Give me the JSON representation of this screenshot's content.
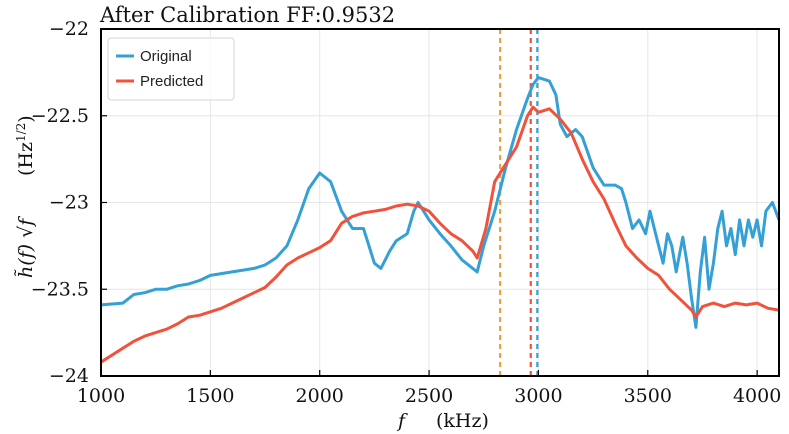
{
  "chart_data": {
    "type": "line",
    "title": "After Calibration FF:0.9532",
    "xlabel": "f",
    "xunit": "(kHz)",
    "ylabel": "h̃(f) √f",
    "yunit": "(Hz",
    "yunit_exp": "1/2",
    "yunit_close": ")",
    "xlim": [
      1000,
      4100
    ],
    "ylim": [
      -24,
      -22
    ],
    "xticks": [
      1000,
      1500,
      2000,
      2500,
      3000,
      3500,
      4000
    ],
    "yticks": [
      -24,
      -23.5,
      -23,
      -22.5,
      -22
    ],
    "ytick_labels": [
      "−24",
      "−23.5",
      "−23",
      "−22.5",
      "−22"
    ],
    "grid": true,
    "legend_position": "top-left",
    "series": [
      {
        "name": "Original",
        "color": "#34a0d6",
        "points": [
          [
            1000,
            -23.59
          ],
          [
            1100,
            -23.58
          ],
          [
            1150,
            -23.53
          ],
          [
            1200,
            -23.52
          ],
          [
            1250,
            -23.5
          ],
          [
            1300,
            -23.5
          ],
          [
            1350,
            -23.48
          ],
          [
            1400,
            -23.47
          ],
          [
            1450,
            -23.45
          ],
          [
            1500,
            -23.42
          ],
          [
            1600,
            -23.4
          ],
          [
            1700,
            -23.38
          ],
          [
            1750,
            -23.36
          ],
          [
            1800,
            -23.32
          ],
          [
            1850,
            -23.25
          ],
          [
            1900,
            -23.1
          ],
          [
            1950,
            -22.92
          ],
          [
            2000,
            -22.83
          ],
          [
            2050,
            -22.88
          ],
          [
            2100,
            -23.05
          ],
          [
            2150,
            -23.15
          ],
          [
            2200,
            -23.15
          ],
          [
            2250,
            -23.35
          ],
          [
            2280,
            -23.38
          ],
          [
            2320,
            -23.28
          ],
          [
            2350,
            -23.22
          ],
          [
            2400,
            -23.18
          ],
          [
            2430,
            -23.05
          ],
          [
            2450,
            -23.0
          ],
          [
            2500,
            -23.1
          ],
          [
            2550,
            -23.18
          ],
          [
            2600,
            -23.25
          ],
          [
            2650,
            -23.33
          ],
          [
            2700,
            -23.38
          ],
          [
            2720,
            -23.4
          ],
          [
            2750,
            -23.25
          ],
          [
            2800,
            -23.05
          ],
          [
            2850,
            -22.8
          ],
          [
            2900,
            -22.58
          ],
          [
            2950,
            -22.4
          ],
          [
            2975,
            -22.32
          ],
          [
            3000,
            -22.28
          ],
          [
            3050,
            -22.3
          ],
          [
            3080,
            -22.38
          ],
          [
            3100,
            -22.55
          ],
          [
            3130,
            -22.62
          ],
          [
            3150,
            -22.6
          ],
          [
            3170,
            -22.58
          ],
          [
            3200,
            -22.62
          ],
          [
            3250,
            -22.8
          ],
          [
            3300,
            -22.9
          ],
          [
            3350,
            -22.9
          ],
          [
            3380,
            -22.92
          ],
          [
            3400,
            -23.0
          ],
          [
            3430,
            -23.15
          ],
          [
            3460,
            -23.1
          ],
          [
            3490,
            -23.18
          ],
          [
            3510,
            -23.05
          ],
          [
            3540,
            -23.2
          ],
          [
            3570,
            -23.35
          ],
          [
            3590,
            -23.18
          ],
          [
            3610,
            -23.25
          ],
          [
            3630,
            -23.4
          ],
          [
            3660,
            -23.2
          ],
          [
            3680,
            -23.35
          ],
          [
            3700,
            -23.55
          ],
          [
            3720,
            -23.72
          ],
          [
            3740,
            -23.4
          ],
          [
            3760,
            -23.2
          ],
          [
            3780,
            -23.5
          ],
          [
            3800,
            -23.35
          ],
          [
            3820,
            -23.15
          ],
          [
            3840,
            -23.05
          ],
          [
            3860,
            -23.25
          ],
          [
            3880,
            -23.15
          ],
          [
            3900,
            -23.3
          ],
          [
            3920,
            -23.1
          ],
          [
            3940,
            -23.25
          ],
          [
            3960,
            -23.1
          ],
          [
            3980,
            -23.2
          ],
          [
            4000,
            -23.1
          ],
          [
            4020,
            -23.25
          ],
          [
            4040,
            -23.05
          ],
          [
            4070,
            -23.0
          ],
          [
            4100,
            -23.1
          ]
        ]
      },
      {
        "name": "Predicted",
        "color": "#f0523c",
        "points": [
          [
            1000,
            -23.92
          ],
          [
            1050,
            -23.88
          ],
          [
            1100,
            -23.84
          ],
          [
            1150,
            -23.8
          ],
          [
            1200,
            -23.77
          ],
          [
            1250,
            -23.75
          ],
          [
            1300,
            -23.73
          ],
          [
            1350,
            -23.7
          ],
          [
            1400,
            -23.66
          ],
          [
            1450,
            -23.65
          ],
          [
            1500,
            -23.63
          ],
          [
            1550,
            -23.61
          ],
          [
            1600,
            -23.58
          ],
          [
            1650,
            -23.55
          ],
          [
            1700,
            -23.52
          ],
          [
            1750,
            -23.49
          ],
          [
            1800,
            -23.43
          ],
          [
            1850,
            -23.36
          ],
          [
            1900,
            -23.32
          ],
          [
            1950,
            -23.29
          ],
          [
            2000,
            -23.26
          ],
          [
            2050,
            -23.22
          ],
          [
            2100,
            -23.12
          ],
          [
            2150,
            -23.08
          ],
          [
            2200,
            -23.06
          ],
          [
            2250,
            -23.05
          ],
          [
            2300,
            -23.04
          ],
          [
            2350,
            -23.02
          ],
          [
            2400,
            -23.01
          ],
          [
            2450,
            -23.02
          ],
          [
            2500,
            -23.05
          ],
          [
            2550,
            -23.12
          ],
          [
            2600,
            -23.18
          ],
          [
            2650,
            -23.22
          ],
          [
            2700,
            -23.28
          ],
          [
            2720,
            -23.32
          ],
          [
            2760,
            -23.15
          ],
          [
            2800,
            -22.88
          ],
          [
            2850,
            -22.78
          ],
          [
            2900,
            -22.68
          ],
          [
            2950,
            -22.5
          ],
          [
            2975,
            -22.45
          ],
          [
            3000,
            -22.48
          ],
          [
            3050,
            -22.46
          ],
          [
            3100,
            -22.52
          ],
          [
            3150,
            -22.6
          ],
          [
            3200,
            -22.75
          ],
          [
            3250,
            -22.88
          ],
          [
            3300,
            -22.98
          ],
          [
            3350,
            -23.12
          ],
          [
            3400,
            -23.25
          ],
          [
            3450,
            -23.32
          ],
          [
            3500,
            -23.38
          ],
          [
            3550,
            -23.42
          ],
          [
            3600,
            -23.5
          ],
          [
            3650,
            -23.56
          ],
          [
            3700,
            -23.62
          ],
          [
            3720,
            -23.66
          ],
          [
            3750,
            -23.6
          ],
          [
            3800,
            -23.58
          ],
          [
            3850,
            -23.6
          ],
          [
            3900,
            -23.58
          ],
          [
            3950,
            -23.59
          ],
          [
            4000,
            -23.58
          ],
          [
            4050,
            -23.61
          ],
          [
            4100,
            -23.62
          ]
        ]
      }
    ],
    "vlines": [
      {
        "x": 2825,
        "color": "#e8a23a",
        "label": "orange-dashed-line"
      },
      {
        "x": 2965,
        "color": "#f0523c",
        "label": "red-dashed-line"
      },
      {
        "x": 2995,
        "color": "#34a0d6",
        "label": "blue-dashed-line"
      }
    ]
  }
}
